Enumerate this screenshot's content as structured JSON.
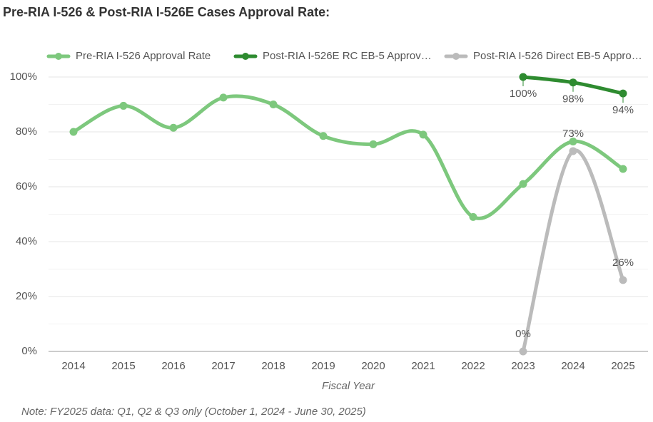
{
  "chart_data": {
    "type": "line",
    "title": "Pre-RIA I-526 & Post-RIA I-526E Cases Approval Rate:",
    "categories": [
      "2014",
      "2015",
      "2016",
      "2017",
      "2018",
      "2019",
      "2020",
      "2021",
      "2022",
      "2023",
      "2024",
      "2025"
    ],
    "series": [
      {
        "name": "Pre-RIA I-526 Approval Rate",
        "color": "#7dc87d",
        "values": [
          80,
          89.5,
          81.5,
          92.5,
          90,
          78.5,
          75.5,
          79,
          49,
          61,
          76.5,
          66.5
        ]
      },
      {
        "name": "Post-RIA I-526E RC EB-5 Approv…",
        "color": "#2e8b30",
        "values": [
          null,
          null,
          null,
          null,
          null,
          null,
          null,
          null,
          null,
          100,
          98,
          94
        ],
        "value_labels": [
          null,
          null,
          null,
          null,
          null,
          null,
          null,
          null,
          null,
          "100%",
          "98%",
          "94%"
        ]
      },
      {
        "name": "Post-RIA I-526 Direct EB-5 Appro…",
        "color": "#bbbbbb",
        "values": [
          null,
          null,
          null,
          null,
          null,
          null,
          null,
          null,
          null,
          0,
          73,
          26
        ],
        "value_labels": [
          null,
          null,
          null,
          null,
          null,
          null,
          null,
          null,
          null,
          "0%",
          "73%",
          "26%"
        ]
      }
    ],
    "ylim": [
      0,
      100
    ],
    "yticks": [
      {
        "value": 0,
        "label": "0%"
      },
      {
        "value": 20,
        "label": "20%"
      },
      {
        "value": 40,
        "label": "40%"
      },
      {
        "value": 60,
        "label": "60%"
      },
      {
        "value": 80,
        "label": "80%"
      },
      {
        "value": 100,
        "label": "100%"
      }
    ],
    "minor_yticks": [
      10,
      30,
      50,
      70,
      90
    ],
    "grid": true,
    "legend": "top",
    "xlabel": "Fiscal Year",
    "note": "Note: FY2025 data: Q1, Q2 & Q3 only (October 1, 2024 - June 30, 2025)"
  }
}
